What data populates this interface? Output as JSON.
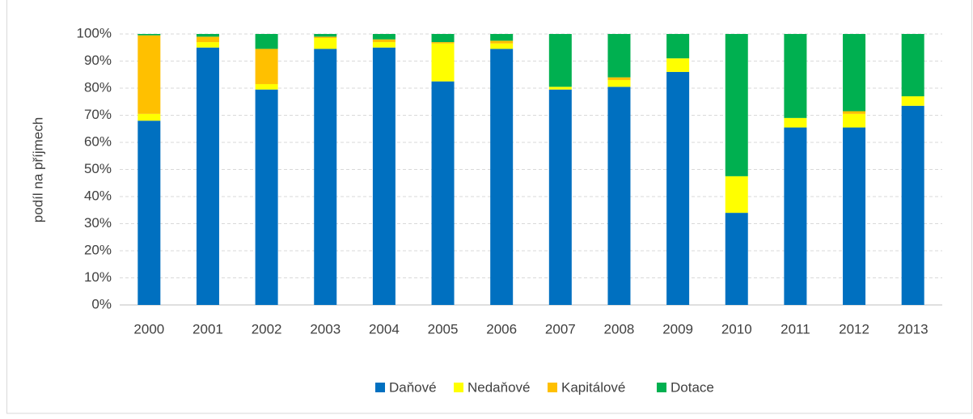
{
  "chart_data": {
    "type": "stacked_bar",
    "y_label": "podíl na příjmech",
    "categories": [
      "2000",
      "2001",
      "2002",
      "2003",
      "2004",
      "2005",
      "2006",
      "2007",
      "2008",
      "2009",
      "2010",
      "2011",
      "2012",
      "2013"
    ],
    "series": [
      {
        "name": "Daňové",
        "color": "#0070c0",
        "values": [
          68,
          95,
          79.5,
          94.5,
          95,
          82.5,
          94.5,
          79.5,
          80.5,
          86,
          34,
          65.5,
          65.5,
          73.5
        ]
      },
      {
        "name": "Nedaňové",
        "color": "#ffff00",
        "values": [
          2.5,
          2,
          2,
          4,
          2,
          14,
          2,
          1,
          2.5,
          5,
          13.5,
          3.5,
          5,
          3.5
        ]
      },
      {
        "name": "Kapitálové",
        "color": "#ffc000",
        "values": [
          29,
          2,
          13,
          0.5,
          1,
          0.5,
          1,
          0,
          1,
          0,
          0,
          0,
          1,
          0
        ]
      },
      {
        "name": "Dotace",
        "color": "#00b050",
        "values": [
          0.5,
          1,
          5.5,
          1,
          2,
          3,
          2.5,
          19.5,
          16,
          9,
          52.5,
          31,
          28.5,
          23
        ]
      }
    ],
    "ylim": [
      0,
      100
    ],
    "yticks": [
      {
        "value": 0,
        "label": "0%"
      },
      {
        "value": 10,
        "label": "10%"
      },
      {
        "value": 20,
        "label": "20%"
      },
      {
        "value": 30,
        "label": "30%"
      },
      {
        "value": 40,
        "label": "40%"
      },
      {
        "value": 50,
        "label": "50%"
      },
      {
        "value": 60,
        "label": "60%"
      },
      {
        "value": 70,
        "label": "70%"
      },
      {
        "value": 80,
        "label": "80%"
      },
      {
        "value": 90,
        "label": "90%"
      },
      {
        "value": 100,
        "label": "100%"
      }
    ],
    "grid": true,
    "legend": "bottom"
  }
}
